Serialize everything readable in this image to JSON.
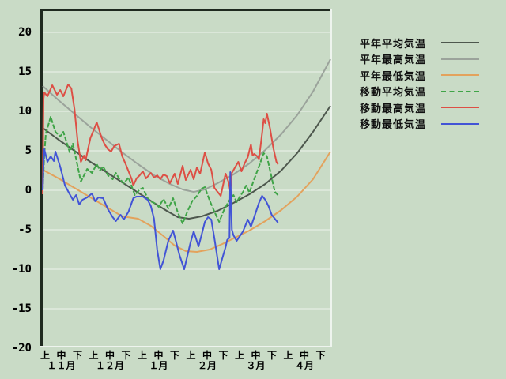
{
  "page": {
    "background_color": "#c9dbc6",
    "panel_border_dark": "#1f2a1f",
    "panel_border_light": "#eef4ee",
    "grid_color": "#edf3ec",
    "text_color": "#000000"
  },
  "chart_data": {
    "type": "line",
    "title": "",
    "xlabel": "",
    "ylabel": "",
    "legend_position": "right",
    "grid": {
      "horizontal": true,
      "vertical": false
    },
    "x_axis": {
      "months": [
        "１１月",
        "１２月",
        "１月",
        "２月",
        "３月",
        "４月"
      ],
      "period_labels": [
        "上",
        "中",
        "下"
      ],
      "days_total": 181
    },
    "y_axis": {
      "min": -20,
      "max": 20,
      "tick_step": 5,
      "tick_labels": [
        "20",
        "15",
        "10",
        "5",
        "0",
        "-5",
        "-10",
        "-15",
        "-20"
      ],
      "unit": "deg C"
    },
    "series": [
      {
        "name": "平年平均気温",
        "color": "#4d574d",
        "style": "solid",
        "width": 2,
        "points": [
          [
            0,
            7.9
          ],
          [
            10,
            6.4
          ],
          [
            20,
            5.0
          ],
          [
            30,
            3.6
          ],
          [
            40,
            2.3
          ],
          [
            50,
            1.0
          ],
          [
            60,
            -0.3
          ],
          [
            70,
            -1.6
          ],
          [
            78,
            -2.6
          ],
          [
            85,
            -3.4
          ],
          [
            92,
            -3.6
          ],
          [
            100,
            -3.3
          ],
          [
            110,
            -2.6
          ],
          [
            120,
            -1.6
          ],
          [
            130,
            -0.5
          ],
          [
            140,
            0.8
          ],
          [
            150,
            2.5
          ],
          [
            160,
            4.7
          ],
          [
            170,
            7.4
          ],
          [
            181,
            10.7
          ]
        ]
      },
      {
        "name": "平年最高気温",
        "color": "#9ba39b",
        "style": "solid",
        "width": 2,
        "points": [
          [
            0,
            13.2
          ],
          [
            10,
            11.4
          ],
          [
            20,
            9.7
          ],
          [
            30,
            8.0
          ],
          [
            40,
            6.4
          ],
          [
            50,
            4.8
          ],
          [
            60,
            3.3
          ],
          [
            70,
            1.9
          ],
          [
            80,
            0.8
          ],
          [
            88,
            0.1
          ],
          [
            95,
            -0.2
          ],
          [
            102,
            0.1
          ],
          [
            110,
            0.9
          ],
          [
            120,
            2.0
          ],
          [
            130,
            3.4
          ],
          [
            140,
            5.1
          ],
          [
            150,
            7.1
          ],
          [
            160,
            9.5
          ],
          [
            170,
            12.5
          ],
          [
            181,
            16.6
          ]
        ]
      },
      {
        "name": "平年最低気温",
        "color": "#e3a25c",
        "style": "solid",
        "width": 2,
        "points": [
          [
            0,
            2.6
          ],
          [
            10,
            1.5
          ],
          [
            20,
            0.3
          ],
          [
            30,
            -0.9
          ],
          [
            40,
            -2.1
          ],
          [
            50,
            -3.3
          ],
          [
            60,
            -3.6
          ],
          [
            68,
            -4.5
          ],
          [
            76,
            -5.8
          ],
          [
            83,
            -7.0
          ],
          [
            90,
            -7.7
          ],
          [
            97,
            -7.8
          ],
          [
            105,
            -7.5
          ],
          [
            113,
            -6.8
          ],
          [
            121,
            -6.0
          ],
          [
            130,
            -5.1
          ],
          [
            140,
            -3.9
          ],
          [
            150,
            -2.5
          ],
          [
            160,
            -0.8
          ],
          [
            170,
            1.4
          ],
          [
            181,
            4.9
          ]
        ]
      },
      {
        "name": "移動平均気温",
        "color": "#3fa447",
        "style": "dashed",
        "width": 2,
        "points": [
          [
            0,
            0.0
          ],
          [
            1,
            4.5
          ],
          [
            2,
            7.2
          ],
          [
            5,
            9.3
          ],
          [
            8,
            7.4
          ],
          [
            11,
            6.8
          ],
          [
            13,
            7.4
          ],
          [
            17,
            4.8
          ],
          [
            19,
            5.9
          ],
          [
            21,
            4.0
          ],
          [
            24,
            1.1
          ],
          [
            28,
            2.7
          ],
          [
            31,
            2.2
          ],
          [
            34,
            3.3
          ],
          [
            36,
            2.5
          ],
          [
            38,
            3.0
          ],
          [
            41,
            1.9
          ],
          [
            44,
            1.4
          ],
          [
            46,
            2.2
          ],
          [
            48,
            1.5
          ],
          [
            51,
            0.9
          ],
          [
            54,
            1.6
          ],
          [
            58,
            -0.6
          ],
          [
            61,
            0.1
          ],
          [
            63,
            0.3
          ],
          [
            66,
            -1.0
          ],
          [
            68,
            -1.4
          ],
          [
            71,
            -1.7
          ],
          [
            73,
            -2.1
          ],
          [
            76,
            -1.1
          ],
          [
            79,
            -2.3
          ],
          [
            82,
            -1.0
          ],
          [
            85,
            -2.8
          ],
          [
            88,
            -4.2
          ],
          [
            91,
            -2.7
          ],
          [
            94,
            -1.4
          ],
          [
            97,
            -0.7
          ],
          [
            100,
            0.2
          ],
          [
            102,
            0.4
          ],
          [
            105,
            -1.3
          ],
          [
            108,
            -2.7
          ],
          [
            111,
            -4.0
          ],
          [
            114,
            -2.5
          ],
          [
            117,
            -1.4
          ],
          [
            120,
            -0.6
          ],
          [
            122,
            -1.5
          ],
          [
            124,
            -0.8
          ],
          [
            126,
            -0.2
          ],
          [
            128,
            0.6
          ],
          [
            130,
            -0.3
          ],
          [
            133,
            1.4
          ],
          [
            136,
            3.0
          ],
          [
            139,
            4.7
          ],
          [
            141,
            4.3
          ],
          [
            144,
            1.6
          ],
          [
            146,
            -0.2
          ],
          [
            148,
            -0.6
          ]
        ]
      },
      {
        "name": "移動最高気温",
        "color": "#dd4f45",
        "style": "solid",
        "width": 2,
        "points": [
          [
            0,
            -0.5
          ],
          [
            0.5,
            11.6
          ],
          [
            1,
            12.4
          ],
          [
            3,
            11.9
          ],
          [
            6,
            13.3
          ],
          [
            9,
            12.1
          ],
          [
            11,
            12.7
          ],
          [
            13,
            11.9
          ],
          [
            16,
            13.4
          ],
          [
            18,
            12.9
          ],
          [
            20,
            10.3
          ],
          [
            22,
            6.2
          ],
          [
            24,
            3.6
          ],
          [
            26,
            4.4
          ],
          [
            27,
            3.8
          ],
          [
            30,
            6.6
          ],
          [
            34,
            8.6
          ],
          [
            37,
            6.7
          ],
          [
            39,
            5.8
          ],
          [
            41,
            5.2
          ],
          [
            43,
            4.9
          ],
          [
            45,
            5.6
          ],
          [
            48,
            5.9
          ],
          [
            50,
            4.3
          ],
          [
            52,
            3.4
          ],
          [
            54,
            2.4
          ],
          [
            56,
            1.4
          ],
          [
            57,
            0.6
          ],
          [
            59,
            1.5
          ],
          [
            61,
            1.9
          ],
          [
            63,
            2.4
          ],
          [
            65,
            1.5
          ],
          [
            68,
            2.2
          ],
          [
            70,
            1.6
          ],
          [
            72,
            1.9
          ],
          [
            74,
            1.4
          ],
          [
            76,
            2.0
          ],
          [
            78,
            1.8
          ],
          [
            80,
            0.9
          ],
          [
            83,
            2.1
          ],
          [
            85,
            0.8
          ],
          [
            88,
            3.1
          ],
          [
            90,
            1.3
          ],
          [
            93,
            2.6
          ],
          [
            95,
            1.4
          ],
          [
            97,
            2.9
          ],
          [
            99,
            2.1
          ],
          [
            102,
            4.8
          ],
          [
            104,
            3.4
          ],
          [
            106,
            2.6
          ],
          [
            108,
            0.3
          ],
          [
            112,
            -0.7
          ],
          [
            114,
            1.2
          ],
          [
            115,
            2.1
          ],
          [
            117,
            1.0
          ],
          [
            118,
            -0.2
          ],
          [
            119,
            2.2
          ],
          [
            121,
            2.9
          ],
          [
            123,
            3.6
          ],
          [
            125,
            2.4
          ],
          [
            127,
            3.4
          ],
          [
            129,
            4.2
          ],
          [
            131,
            5.8
          ],
          [
            132,
            4.4
          ],
          [
            133,
            4.6
          ],
          [
            135,
            4.3
          ],
          [
            136,
            3.9
          ],
          [
            138,
            7.2
          ],
          [
            139,
            9.0
          ],
          [
            140,
            8.5
          ],
          [
            141,
            9.7
          ],
          [
            143,
            7.8
          ],
          [
            145,
            5.4
          ],
          [
            147,
            3.6
          ],
          [
            148,
            3.3
          ]
        ]
      },
      {
        "name": "移動最低気温",
        "color": "#4254d6",
        "style": "solid",
        "width": 2,
        "points": [
          [
            0,
            0.0
          ],
          [
            0.8,
            4.9
          ],
          [
            1,
            5.2
          ],
          [
            3,
            3.6
          ],
          [
            5,
            4.3
          ],
          [
            7,
            3.7
          ],
          [
            8,
            4.9
          ],
          [
            11,
            3.0
          ],
          [
            14,
            0.6
          ],
          [
            17,
            -0.5
          ],
          [
            19,
            -1.2
          ],
          [
            21,
            -0.6
          ],
          [
            23,
            -1.8
          ],
          [
            25,
            -1.2
          ],
          [
            28,
            -0.9
          ],
          [
            31,
            -0.4
          ],
          [
            33,
            -1.4
          ],
          [
            35,
            -0.9
          ],
          [
            38,
            -1.0
          ],
          [
            41,
            -2.4
          ],
          [
            44,
            -3.4
          ],
          [
            46,
            -3.9
          ],
          [
            49,
            -3.1
          ],
          [
            51,
            -3.7
          ],
          [
            54,
            -2.7
          ],
          [
            57,
            -1.0
          ],
          [
            59,
            -0.8
          ],
          [
            63,
            -0.8
          ],
          [
            66,
            -1.2
          ],
          [
            68,
            -2.0
          ],
          [
            70,
            -3.6
          ],
          [
            72,
            -7.5
          ],
          [
            74,
            -10.0
          ],
          [
            76,
            -8.9
          ],
          [
            79,
            -6.4
          ],
          [
            82,
            -5.1
          ],
          [
            84,
            -6.6
          ],
          [
            86,
            -8.2
          ],
          [
            89,
            -10.0
          ],
          [
            91,
            -8.3
          ],
          [
            93,
            -6.6
          ],
          [
            95,
            -5.2
          ],
          [
            98,
            -7.1
          ],
          [
            100,
            -5.6
          ],
          [
            102,
            -4.0
          ],
          [
            104,
            -3.4
          ],
          [
            106,
            -3.7
          ],
          [
            108,
            -6.1
          ],
          [
            111,
            -10.0
          ],
          [
            113,
            -8.6
          ],
          [
            115,
            -7.2
          ],
          [
            116,
            -6.3
          ],
          [
            117.5,
            -6.0
          ],
          [
            118,
            2.3
          ],
          [
            119,
            -5.0
          ],
          [
            120,
            -5.7
          ],
          [
            122,
            -6.4
          ],
          [
            124,
            -5.8
          ],
          [
            126,
            -5.2
          ],
          [
            129,
            -3.7
          ],
          [
            131,
            -4.6
          ],
          [
            133,
            -3.4
          ],
          [
            136,
            -1.6
          ],
          [
            138,
            -0.7
          ],
          [
            140,
            -1.2
          ],
          [
            142,
            -2.0
          ],
          [
            144,
            -3.1
          ],
          [
            146,
            -3.6
          ],
          [
            148,
            -4.1
          ]
        ]
      }
    ]
  }
}
